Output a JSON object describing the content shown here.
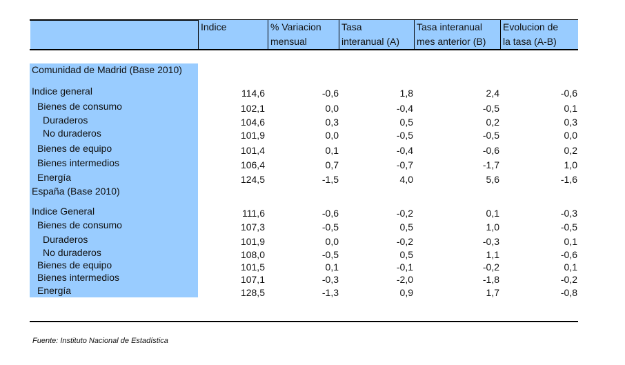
{
  "header": {
    "col1": "Indice",
    "col2_line1": "% Variacion",
    "col2_line2": "mensual",
    "col3_line1": "Tasa",
    "col3_line2": "interanual (A)",
    "col4_line1": "Tasa interanual",
    "col4_line2": "mes anterior (B)",
    "col5_line1": "Evolucion de",
    "col5_line2": "la tasa (A-B)"
  },
  "sections": [
    {
      "title": "Comunidad de Madrid (Base 2010)",
      "rows": [
        {
          "label": "Indice general",
          "values": [
            "114,6",
            "-0,6",
            "1,8",
            "2,4",
            "-0,6"
          ]
        },
        {
          "label": "Bienes de consumo",
          "values": [
            "102,1",
            "0,0",
            "-0,4",
            "-0,5",
            "0,1"
          ]
        },
        {
          "label": "Duraderos",
          "values": [
            "104,6",
            "0,3",
            "0,5",
            "0,2",
            "0,3"
          ]
        },
        {
          "label": "No duraderos",
          "values": [
            "101,9",
            "0,0",
            "-0,5",
            "-0,5",
            "0,0"
          ]
        },
        {
          "label": "Bienes de equipo",
          "values": [
            "101,4",
            "0,1",
            "-0,4",
            "-0,6",
            "0,2"
          ]
        },
        {
          "label": "Bienes intermedios",
          "values": [
            "106,4",
            "0,7",
            "-0,7",
            "-1,7",
            "1,0"
          ]
        },
        {
          "label": "Energía",
          "values": [
            "124,5",
            "-1,5",
            "4,0",
            "5,6",
            "-1,6"
          ]
        }
      ]
    },
    {
      "title": "España (Base 2010)",
      "rows": [
        {
          "label": "Indice General",
          "values": [
            "111,6",
            "-0,6",
            "-0,2",
            "0,1",
            "-0,3"
          ]
        },
        {
          "label": "Bienes de consumo",
          "values": [
            "107,3",
            "-0,5",
            "0,5",
            "1,0",
            "-0,5"
          ]
        },
        {
          "label": "Duraderos",
          "values": [
            "101,9",
            "0,0",
            "-0,2",
            "-0,3",
            "0,1"
          ]
        },
        {
          "label": "No duraderos",
          "values": [
            "108,0",
            "-0,5",
            "0,5",
            "1,1",
            "-0,6"
          ]
        },
        {
          "label": "Bienes de equipo",
          "values": [
            "101,5",
            "0,1",
            "-0,1",
            "-0,2",
            "0,1"
          ]
        },
        {
          "label": "Bienes intermedios",
          "values": [
            "107,1",
            "-0,3",
            "-2,0",
            "-1,8",
            "-0,2"
          ]
        },
        {
          "label": "Energía",
          "values": [
            "128,5",
            "-1,3",
            "0,9",
            "1,7",
            "-0,8"
          ]
        }
      ]
    }
  ],
  "source": "Fuente: Instituto Nacional de Estadística"
}
